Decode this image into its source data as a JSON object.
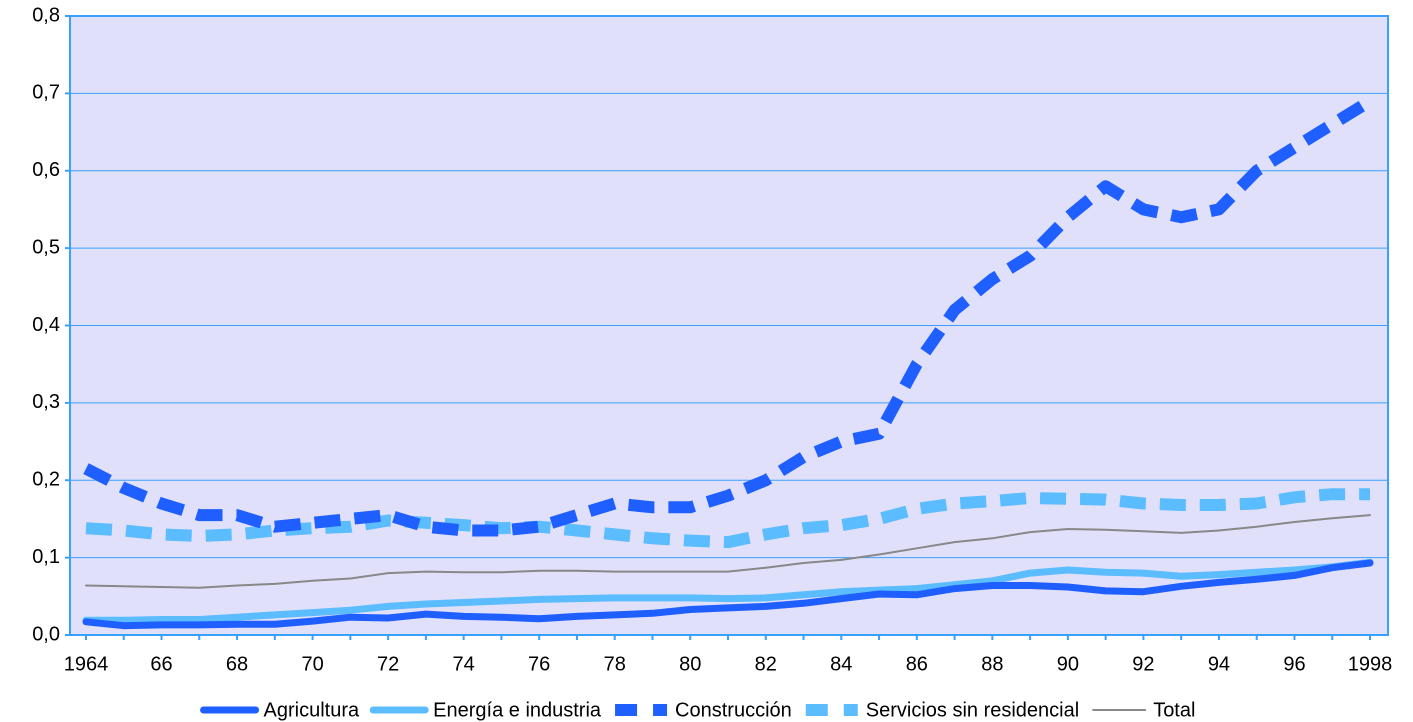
{
  "chart_data": {
    "type": "line",
    "categories": [
      "1964",
      null,
      "66",
      null,
      "68",
      null,
      "70",
      null,
      "72",
      null,
      "74",
      null,
      "76",
      null,
      "78",
      null,
      "80",
      null,
      "82",
      null,
      "84",
      null,
      "86",
      null,
      "88",
      null,
      "90",
      null,
      "92",
      null,
      "94",
      null,
      "96",
      null,
      "1998"
    ],
    "ylim": [
      0,
      0.8
    ],
    "yticks": [
      {
        "value": 0,
        "label": "0,0"
      },
      {
        "value": 0.1,
        "label": "0,1"
      },
      {
        "value": 0.2,
        "label": "0,2"
      },
      {
        "value": 0.3,
        "label": "0,3"
      },
      {
        "value": 0.4,
        "label": "0,4"
      },
      {
        "value": 0.5,
        "label": "0,5"
      },
      {
        "value": 0.6,
        "label": "0,6"
      },
      {
        "value": 0.7,
        "label": "0,7"
      },
      {
        "value": 0.8,
        "label": "0,8"
      }
    ],
    "grid": true,
    "legend": "bottom",
    "series": [
      {
        "name": "Agricultura",
        "color": "#1f5fff",
        "line_style": "solid",
        "values": [
          0.017,
          0.012,
          0.013,
          0.013,
          0.014,
          0.014,
          0.018,
          0.023,
          0.022,
          0.027,
          0.024,
          0.023,
          0.021,
          0.024,
          0.026,
          0.028,
          0.033,
          0.035,
          0.037,
          0.041,
          0.047,
          0.053,
          0.052,
          0.06,
          0.064,
          0.064,
          0.062,
          0.057,
          0.056,
          0.063,
          0.068,
          0.072,
          0.077,
          0.087,
          0.093
        ]
      },
      {
        "name": "Energía e industria",
        "color": "#5bbcff",
        "line_style": "solid",
        "values": [
          0.019,
          0.019,
          0.02,
          0.02,
          0.023,
          0.026,
          0.029,
          0.032,
          0.037,
          0.04,
          0.042,
          0.044,
          0.046,
          0.047,
          0.048,
          0.048,
          0.048,
          0.047,
          0.048,
          0.052,
          0.056,
          0.058,
          0.06,
          0.065,
          0.07,
          0.08,
          0.084,
          0.081,
          0.08,
          0.076,
          0.078,
          0.081,
          0.084,
          0.088,
          0.094
        ]
      },
      {
        "name": "Construcción",
        "color": "#1f5fff",
        "line_style": "dashed",
        "values": [
          0.215,
          0.19,
          0.17,
          0.155,
          0.155,
          0.14,
          0.145,
          0.15,
          0.155,
          0.14,
          0.135,
          0.135,
          0.14,
          0.155,
          0.17,
          0.165,
          0.165,
          0.18,
          0.2,
          0.23,
          0.25,
          0.26,
          0.35,
          0.42,
          0.46,
          0.49,
          0.54,
          0.58,
          0.55,
          0.54,
          0.55,
          0.6,
          0.63,
          0.66,
          0.69
        ]
      },
      {
        "name": "Servicios sin residencial",
        "color": "#5bbcff",
        "line_style": "dashed",
        "values": [
          0.138,
          0.135,
          0.13,
          0.128,
          0.13,
          0.135,
          0.138,
          0.14,
          0.148,
          0.145,
          0.142,
          0.138,
          0.14,
          0.135,
          0.13,
          0.125,
          0.122,
          0.12,
          0.13,
          0.138,
          0.142,
          0.15,
          0.163,
          0.17,
          0.173,
          0.177,
          0.176,
          0.175,
          0.17,
          0.168,
          0.168,
          0.17,
          0.178,
          0.182,
          0.182
        ]
      },
      {
        "name": "Total",
        "color": "#888888",
        "line_style": "thin",
        "values": [
          0.064,
          0.063,
          0.062,
          0.061,
          0.064,
          0.066,
          0.07,
          0.073,
          0.08,
          0.082,
          0.081,
          0.081,
          0.083,
          0.083,
          0.082,
          0.082,
          0.082,
          0.082,
          0.087,
          0.093,
          0.097,
          0.104,
          0.112,
          0.12,
          0.125,
          0.133,
          0.137,
          0.136,
          0.134,
          0.132,
          0.135,
          0.14,
          0.146,
          0.151,
          0.155
        ]
      }
    ]
  }
}
